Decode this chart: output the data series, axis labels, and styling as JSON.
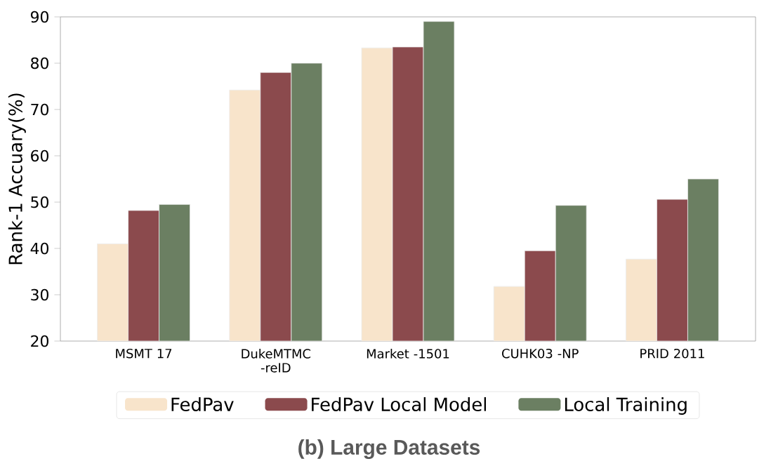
{
  "chart_data": {
    "type": "bar",
    "title": "(b) Large Datasets",
    "ylabel": "Rank-1 Accuary(%)",
    "categories": [
      "MSMT 17",
      "DukeMTMC -reID",
      "Market -1501",
      "CUHK03 -NP",
      "PRID 2011"
    ],
    "series": [
      {
        "name": "FedPav",
        "color": "#f8e4cb",
        "values": [
          41,
          74.2,
          83.3,
          31.8,
          37.7
        ]
      },
      {
        "name": "FedPav Local Model",
        "color": "#8b4a4d",
        "values": [
          48.2,
          78,
          83.5,
          39.5,
          50.6
        ]
      },
      {
        "name": "Local Training",
        "color": "#6b7f62",
        "values": [
          49.5,
          80,
          89,
          49.3,
          55
        ]
      }
    ],
    "ylim": [
      20,
      90
    ],
    "yticks": [
      20,
      30,
      40,
      50,
      60,
      70,
      80,
      90
    ],
    "grid": false,
    "legend": "bottom"
  }
}
